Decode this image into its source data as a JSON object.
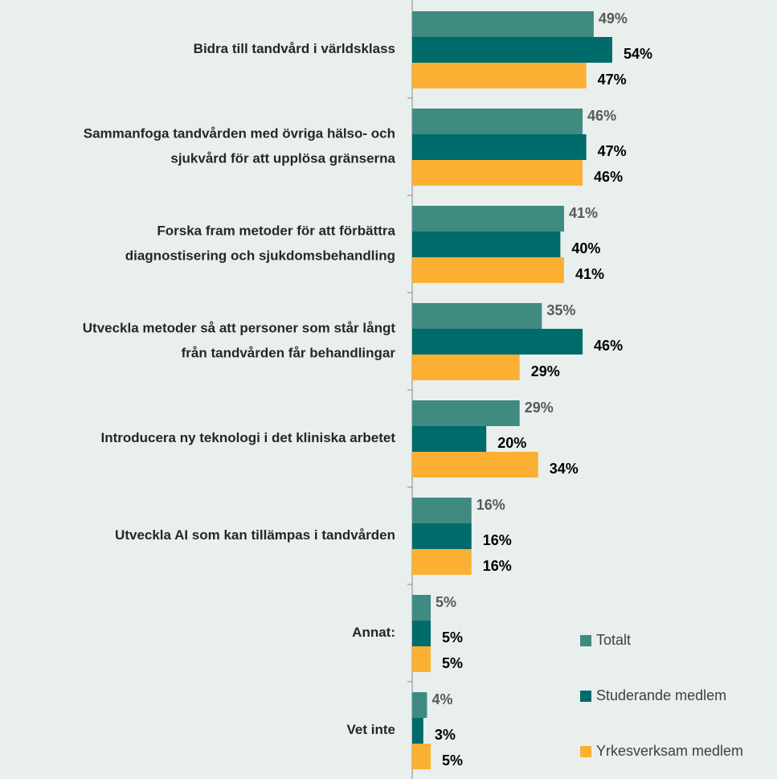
{
  "chart_data": {
    "type": "hbar",
    "categories": [
      "Bidra till tandvård i världsklass",
      "Sammanfoga tandvården med övriga hälso- och\nsjukvård för att upplösa gränserna",
      "Forska fram metoder för att förbättra\ndiagnostisering och sjukdomsbehandling",
      "Utveckla metoder så att personer som står långt\nfrån tandvården får behandlingar",
      "Introducera ny teknologi i det kliniska arbetet",
      "Utveckla AI som kan tillämpas i tandvården",
      "Annat:",
      "Vet inte"
    ],
    "series": [
      {
        "name": "Totalt",
        "color": "#3f8a81",
        "label_color": "#595959",
        "values": [
          49,
          46,
          41,
          35,
          29,
          16,
          5,
          4
        ],
        "value_labels": [
          "49%",
          "46%",
          "41%",
          "35%",
          "29%",
          "16%",
          "5%",
          "4%"
        ]
      },
      {
        "name": "Studerande medlem",
        "color": "#006b6b",
        "label_color": "#000000",
        "values": [
          54,
          47,
          40,
          46,
          20,
          16,
          5,
          3
        ],
        "value_labels": [
          "54%",
          "47%",
          "40%",
          "46%",
          "20%",
          "16%",
          "5%",
          "3%"
        ]
      },
      {
        "name": "Yrkesverksam medlem",
        "color": "#fbb034",
        "label_color": "#000000",
        "values": [
          47,
          46,
          41,
          29,
          34,
          16,
          5,
          5
        ],
        "value_labels": [
          "47%",
          "46%",
          "41%",
          "29%",
          "34%",
          "16%",
          "5%",
          "5%"
        ]
      }
    ],
    "legend": "bottom-right"
  }
}
